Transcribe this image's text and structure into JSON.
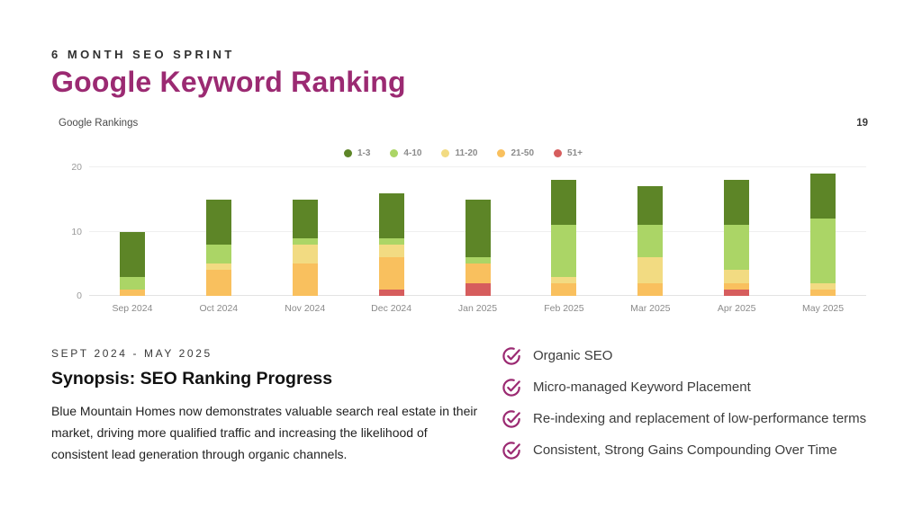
{
  "header": {
    "eyebrow": "6 MONTH SEO SPRINT",
    "title": "Google Keyword Ranking"
  },
  "chart": {
    "label": "Google Rankings",
    "corner_value": "19"
  },
  "chart_data": {
    "type": "bar",
    "stacked": true,
    "title": "Google Rankings",
    "categories": [
      "Sep 2024",
      "Oct 2024",
      "Nov 2024",
      "Dec 2024",
      "Jan 2025",
      "Feb 2025",
      "Mar 2025",
      "Apr 2025",
      "May 2025"
    ],
    "series": [
      {
        "name": "1-3",
        "color": "#5d8527",
        "values": [
          7,
          7,
          6,
          7,
          9,
          7,
          6,
          7,
          7
        ]
      },
      {
        "name": "4-10",
        "color": "#abd566",
        "values": [
          2,
          3,
          1,
          1,
          1,
          8,
          5,
          7,
          10
        ]
      },
      {
        "name": "11-20",
        "color": "#f2db82",
        "values": [
          0,
          1,
          3,
          2,
          0,
          1,
          4,
          2,
          1
        ]
      },
      {
        "name": "21-50",
        "color": "#f9c05e",
        "values": [
          1,
          4,
          5,
          5,
          3,
          2,
          2,
          1,
          1
        ]
      },
      {
        "name": "51+",
        "color": "#d65d5d",
        "values": [
          0,
          0,
          0,
          1,
          2,
          0,
          0,
          1,
          0
        ]
      }
    ],
    "stack_order_bottom_to_top": [
      "51+",
      "21-50",
      "11-20",
      "4-10",
      "1-3"
    ],
    "totals": [
      10,
      15,
      15,
      16,
      15,
      18,
      17,
      18,
      19
    ],
    "ylabel": "",
    "xlabel": "",
    "ylim": [
      0,
      20
    ],
    "yticks": [
      0,
      10,
      20
    ],
    "grid": true,
    "legend_position": "top-center"
  },
  "synopsis": {
    "eyebrow": "SEPT 2024 - MAY 2025",
    "heading": "Synopsis: SEO Ranking Progress",
    "body": "Blue Mountain Homes now demonstrates valuable search real estate in their market, driving more qualified traffic and increasing the likelihood of consistent lead generation through organic channels."
  },
  "highlights": {
    "check_icon": "check-circle-icon",
    "items": [
      "Organic SEO",
      "Micro-managed Keyword Placement",
      "Re-indexing and replacement of low-performance terms",
      "Consistent, Strong Gains Compounding Over Time"
    ]
  },
  "theme": {
    "accent": "#9b2a72",
    "grid_color": "#efefef",
    "axis_text_color": "#8a8a8a"
  }
}
